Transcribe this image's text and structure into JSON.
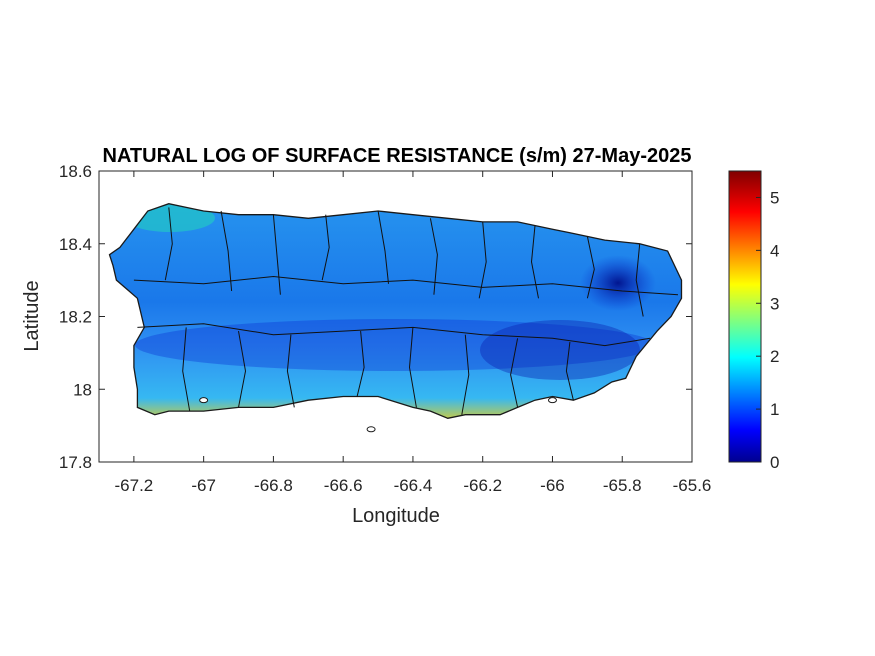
{
  "chart_data": {
    "type": "heatmap",
    "title": "NATURAL LOG OF SURFACE RESISTANCE (s/m) 27-May-2025",
    "xlabel": "Longitude",
    "ylabel": "Latitude",
    "xlim": [
      -67.3,
      -65.6
    ],
    "ylim": [
      17.8,
      18.6
    ],
    "x_ticks": [
      -67.2,
      -67,
      -66.8,
      -66.6,
      -66.4,
      -66.2,
      -66,
      -65.8,
      -65.6
    ],
    "x_tick_labels": [
      "-67.2",
      "-67",
      "-66.8",
      "-66.6",
      "-66.4",
      "-66.2",
      "-66",
      "-65.8",
      "-65.6"
    ],
    "y_ticks": [
      17.8,
      18,
      18.2,
      18.4,
      18.6
    ],
    "y_tick_labels": [
      "17.8",
      "18",
      "18.2",
      "18.4",
      "18.6"
    ],
    "colorbar": {
      "colormap": "jet",
      "range": [
        0,
        5.5
      ],
      "ticks": [
        0,
        1,
        2,
        3,
        4,
        5
      ],
      "tick_labels": [
        "0",
        "1",
        "2",
        "3",
        "4",
        "5"
      ]
    },
    "grid": false,
    "outline": [
      [
        -67.27,
        18.37
      ],
      [
        -67.24,
        18.39
      ],
      [
        -67.2,
        18.44
      ],
      [
        -67.16,
        18.49
      ],
      [
        -67.1,
        18.51
      ],
      [
        -67.05,
        18.5
      ],
      [
        -67.0,
        18.49
      ],
      [
        -66.9,
        18.48
      ],
      [
        -66.8,
        18.48
      ],
      [
        -66.7,
        18.47
      ],
      [
        -66.6,
        18.48
      ],
      [
        -66.5,
        18.49
      ],
      [
        -66.4,
        18.48
      ],
      [
        -66.3,
        18.47
      ],
      [
        -66.2,
        18.46
      ],
      [
        -66.1,
        18.46
      ],
      [
        -66.0,
        18.44
      ],
      [
        -65.95,
        18.43
      ],
      [
        -65.85,
        18.41
      ],
      [
        -65.75,
        18.4
      ],
      [
        -65.67,
        18.38
      ],
      [
        -65.63,
        18.3
      ],
      [
        -65.63,
        18.25
      ],
      [
        -65.66,
        18.2
      ],
      [
        -65.7,
        18.16
      ],
      [
        -65.76,
        18.09
      ],
      [
        -65.79,
        18.03
      ],
      [
        -65.83,
        18.02
      ],
      [
        -65.88,
        17.99
      ],
      [
        -65.94,
        17.97
      ],
      [
        -66.0,
        17.98
      ],
      [
        -66.05,
        17.97
      ],
      [
        -66.1,
        17.95
      ],
      [
        -66.15,
        17.93
      ],
      [
        -66.2,
        17.93
      ],
      [
        -66.25,
        17.93
      ],
      [
        -66.3,
        17.92
      ],
      [
        -66.35,
        17.94
      ],
      [
        -66.4,
        17.95
      ],
      [
        -66.5,
        17.98
      ],
      [
        -66.6,
        17.98
      ],
      [
        -66.7,
        17.97
      ],
      [
        -66.8,
        17.95
      ],
      [
        -66.9,
        17.95
      ],
      [
        -67.0,
        17.94
      ],
      [
        -67.1,
        17.94
      ],
      [
        -67.14,
        17.93
      ],
      [
        -67.19,
        17.95
      ],
      [
        -67.19,
        18.0
      ],
      [
        -67.2,
        18.06
      ],
      [
        -67.2,
        18.12
      ],
      [
        -67.17,
        18.17
      ],
      [
        -67.19,
        18.25
      ],
      [
        -67.25,
        18.3
      ],
      [
        -67.26,
        18.34
      ]
    ],
    "municipality_lines": [
      [
        [
          -67.1,
          18.5
        ],
        [
          -67.09,
          18.4
        ],
        [
          -67.11,
          18.3
        ]
      ],
      [
        [
          -66.95,
          18.49
        ],
        [
          -66.93,
          18.38
        ],
        [
          -66.92,
          18.27
        ]
      ],
      [
        [
          -66.8,
          18.48
        ],
        [
          -66.79,
          18.37
        ],
        [
          -66.78,
          18.26
        ]
      ],
      [
        [
          -66.65,
          18.48
        ],
        [
          -66.64,
          18.39
        ],
        [
          -66.66,
          18.3
        ]
      ],
      [
        [
          -66.5,
          18.49
        ],
        [
          -66.48,
          18.38
        ],
        [
          -66.47,
          18.29
        ]
      ],
      [
        [
          -66.35,
          18.47
        ],
        [
          -66.33,
          18.37
        ],
        [
          -66.34,
          18.26
        ]
      ],
      [
        [
          -66.2,
          18.46
        ],
        [
          -66.19,
          18.35
        ],
        [
          -66.21,
          18.25
        ]
      ],
      [
        [
          -66.05,
          18.45
        ],
        [
          -66.06,
          18.35
        ],
        [
          -66.04,
          18.25
        ]
      ],
      [
        [
          -65.9,
          18.42
        ],
        [
          -65.88,
          18.33
        ],
        [
          -65.9,
          18.25
        ]
      ],
      [
        [
          -65.75,
          18.4
        ],
        [
          -65.76,
          18.3
        ],
        [
          -65.74,
          18.2
        ]
      ],
      [
        [
          -67.2,
          18.3
        ],
        [
          -67.0,
          18.29
        ],
        [
          -66.8,
          18.31
        ],
        [
          -66.6,
          18.29
        ],
        [
          -66.4,
          18.3
        ],
        [
          -66.2,
          18.28
        ],
        [
          -66.0,
          18.29
        ],
        [
          -65.8,
          18.27
        ],
        [
          -65.64,
          18.26
        ]
      ],
      [
        [
          -67.19,
          18.17
        ],
        [
          -67.0,
          18.18
        ],
        [
          -66.8,
          18.15
        ],
        [
          -66.6,
          18.16
        ],
        [
          -66.4,
          18.17
        ],
        [
          -66.2,
          18.15
        ],
        [
          -66.0,
          18.14
        ],
        [
          -65.85,
          18.12
        ],
        [
          -65.72,
          18.14
        ]
      ],
      [
        [
          -67.05,
          18.17
        ],
        [
          -67.06,
          18.05
        ],
        [
          -67.04,
          17.94
        ]
      ],
      [
        [
          -66.9,
          18.16
        ],
        [
          -66.88,
          18.05
        ],
        [
          -66.9,
          17.95
        ]
      ],
      [
        [
          -66.75,
          18.15
        ],
        [
          -66.76,
          18.05
        ],
        [
          -66.74,
          17.95
        ]
      ],
      [
        [
          -66.55,
          18.16
        ],
        [
          -66.54,
          18.06
        ],
        [
          -66.56,
          17.98
        ]
      ],
      [
        [
          -66.4,
          18.17
        ],
        [
          -66.41,
          18.06
        ],
        [
          -66.39,
          17.95
        ]
      ],
      [
        [
          -66.25,
          18.15
        ],
        [
          -66.24,
          18.04
        ],
        [
          -66.26,
          17.93
        ]
      ],
      [
        [
          -66.1,
          18.14
        ],
        [
          -66.12,
          18.04
        ],
        [
          -66.1,
          17.95
        ]
      ],
      [
        [
          -65.95,
          18.13
        ],
        [
          -65.96,
          18.05
        ],
        [
          -65.94,
          17.97
        ]
      ]
    ],
    "islets": [
      [
        -66.52,
        17.89
      ],
      [
        -67.0,
        17.97
      ],
      [
        -66.0,
        17.97
      ]
    ]
  }
}
